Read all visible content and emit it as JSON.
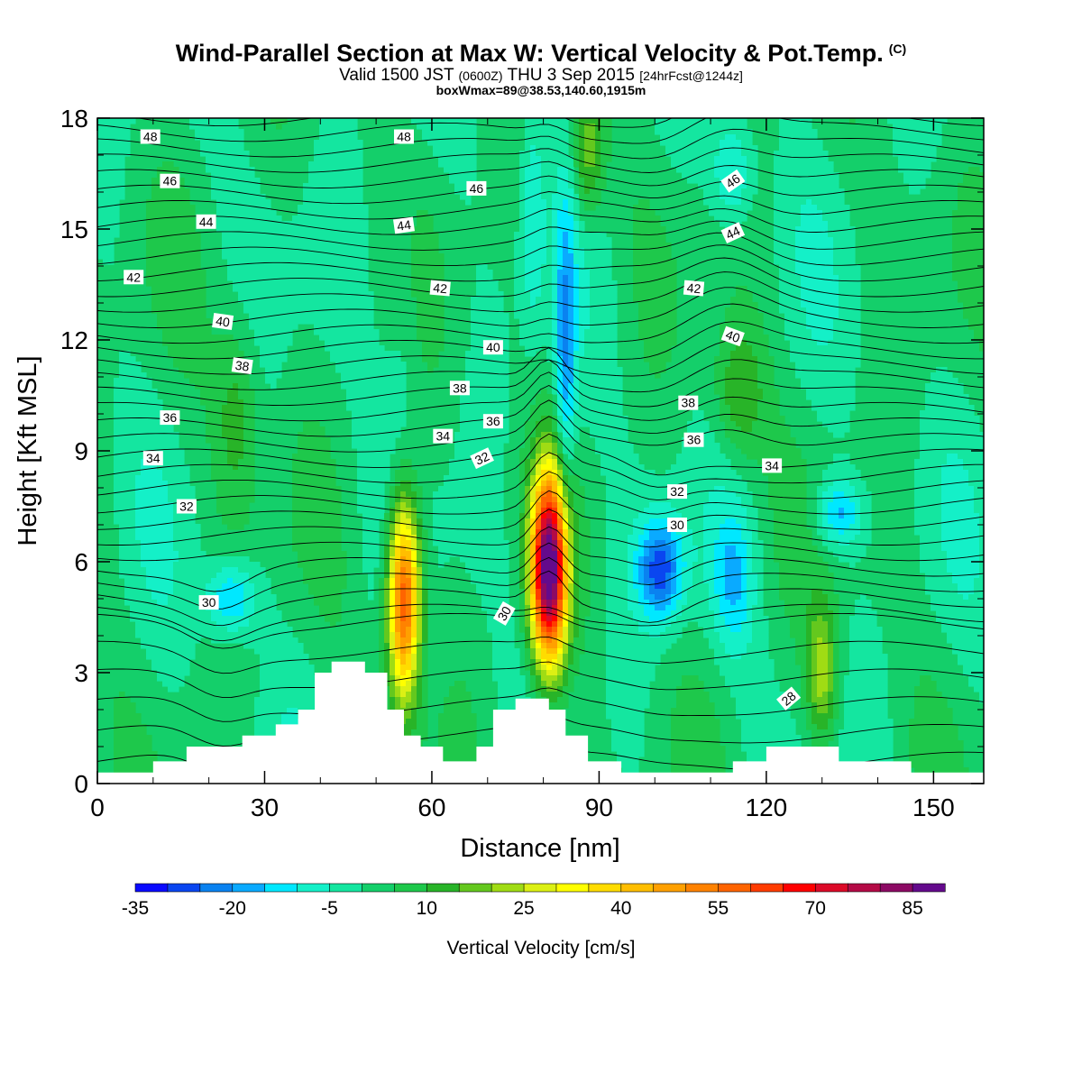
{
  "header": {
    "title": "Wind-Parallel Section at Max W: Vertical Velocity & Pot.Temp.",
    "copyright_mark": "(C)",
    "subtitle_a": "Valid 1500 JST",
    "subtitle_b": "(0600Z)",
    "subtitle_c": "THU 3 Sep 2015",
    "subtitle_d": "[24hrFcst@1244z]",
    "subtitle2": "boxWmax=89@38.53,140.60,1915m"
  },
  "colors": {
    "background_field": "#14cf6a",
    "terrain": "#ffffff",
    "contour": "#000000"
  },
  "chart_data": {
    "type": "heatmap",
    "xlabel": "Distance [nm]",
    "ylabel": "Height [Kft MSL]",
    "xlim": [
      0,
      159
    ],
    "ylim": [
      0,
      18
    ],
    "xticks": [
      0,
      30,
      60,
      90,
      120,
      150
    ],
    "yticks": [
      0,
      3,
      6,
      9,
      12,
      15,
      18
    ],
    "colorbar": {
      "label": "Vertical Velocity [cm/s]",
      "levels": [
        -35,
        -30,
        -25,
        -20,
        -15,
        -10,
        -5,
        0,
        5,
        10,
        15,
        20,
        25,
        30,
        35,
        40,
        45,
        50,
        55,
        60,
        65,
        70,
        75,
        80,
        85,
        90
      ],
      "tick_labels": [
        -35,
        -20,
        -5,
        10,
        25,
        40,
        55,
        70,
        85
      ],
      "colors": [
        "#0a0aff",
        "#0a46f0",
        "#0a82f0",
        "#0aaaff",
        "#00e8ff",
        "#14f0c8",
        "#14e6a0",
        "#14cf6a",
        "#1ec84b",
        "#28b428",
        "#64c81e",
        "#a0dc14",
        "#dcf014",
        "#ffff00",
        "#ffdc00",
        "#ffbe00",
        "#ffa000",
        "#ff8200",
        "#ff6400",
        "#ff3c00",
        "#ff0000",
        "#dc0a28",
        "#b40a46",
        "#8c0a64",
        "#640a8c"
      ]
    },
    "velocity_features": [
      {
        "x": 55,
        "y": 5.0,
        "rx": 3.2,
        "ry": 3.0,
        "peak": 62
      },
      {
        "x": 81,
        "y": 5.8,
        "rx": 3.5,
        "ry": 2.8,
        "peak": 89
      },
      {
        "x": 101,
        "y": 5.8,
        "rx": 4.5,
        "ry": 1.5,
        "peak": -28
      },
      {
        "x": 114,
        "y": 5.5,
        "rx": 4.0,
        "ry": 2.0,
        "peak": -14
      },
      {
        "x": 133,
        "y": 7.3,
        "rx": 4.5,
        "ry": 1.0,
        "peak": -18
      },
      {
        "x": 24,
        "y": 5.0,
        "rx": 5.0,
        "ry": 1.1,
        "peak": -18
      },
      {
        "x": 84,
        "y": 11.5,
        "rx": 2.0,
        "ry": 4.5,
        "peak": -20
      },
      {
        "x": 78,
        "y": 15.5,
        "rx": 2.2,
        "ry": 3.5,
        "peak": -10
      },
      {
        "x": 114,
        "y": 16.5,
        "rx": 4.0,
        "ry": 1.6,
        "peak": -14
      },
      {
        "x": 55,
        "y": 12.5,
        "rx": 3.5,
        "ry": 5.0,
        "peak": -5
      },
      {
        "x": 130,
        "y": 3.0,
        "rx": 3.0,
        "ry": 2.0,
        "peak": 22
      },
      {
        "x": 115,
        "y": 10.5,
        "rx": 5.0,
        "ry": 2.0,
        "peak": 14
      },
      {
        "x": 25,
        "y": 10.0,
        "rx": 4.5,
        "ry": 3.0,
        "peak": 12
      },
      {
        "x": 88,
        "y": 17.0,
        "rx": 3.0,
        "ry": 2.0,
        "peak": 18
      }
    ],
    "terrain_kft": [
      [
        0,
        0.3
      ],
      [
        10,
        0.3
      ],
      [
        10,
        0.6
      ],
      [
        16,
        0.6
      ],
      [
        16,
        1.0
      ],
      [
        26,
        1.0
      ],
      [
        26,
        1.3
      ],
      [
        32,
        1.3
      ],
      [
        32,
        1.6
      ],
      [
        36,
        1.6
      ],
      [
        36,
        2.0
      ],
      [
        39,
        2.0
      ],
      [
        39,
        3.0
      ],
      [
        42,
        3.0
      ],
      [
        42,
        3.3
      ],
      [
        48,
        3.3
      ],
      [
        48,
        3.0
      ],
      [
        52,
        3.0
      ],
      [
        52,
        2.0
      ],
      [
        55,
        2.0
      ],
      [
        55,
        1.3
      ],
      [
        58,
        1.3
      ],
      [
        58,
        1.0
      ],
      [
        62,
        1.0
      ],
      [
        62,
        0.6
      ],
      [
        68,
        0.6
      ],
      [
        68,
        1.0
      ],
      [
        71,
        1.0
      ],
      [
        71,
        2.0
      ],
      [
        75,
        2.0
      ],
      [
        75,
        2.3
      ],
      [
        81,
        2.3
      ],
      [
        81,
        2.0
      ],
      [
        84,
        2.0
      ],
      [
        84,
        1.3
      ],
      [
        88,
        1.3
      ],
      [
        88,
        0.6
      ],
      [
        94,
        0.6
      ],
      [
        94,
        0.3
      ],
      [
        114,
        0.3
      ],
      [
        114,
        0.6
      ],
      [
        120,
        0.6
      ],
      [
        120,
        1.0
      ],
      [
        133,
        1.0
      ],
      [
        133,
        0.6
      ],
      [
        146,
        0.6
      ],
      [
        146,
        0.3
      ],
      [
        159,
        0.3
      ]
    ],
    "theta_contour_labels": [
      {
        "text": "48",
        "x": 9.5,
        "y": 17.5,
        "angle": 0
      },
      {
        "text": "48",
        "x": 55,
        "y": 17.5,
        "angle": 0
      },
      {
        "text": "46",
        "x": 13,
        "y": 16.3,
        "angle": 0
      },
      {
        "text": "46",
        "x": 68,
        "y": 16.1,
        "angle": 0
      },
      {
        "text": "46",
        "x": 114,
        "y": 16.3,
        "angle": 35
      },
      {
        "text": "44",
        "x": 19.5,
        "y": 15.2,
        "angle": 0
      },
      {
        "text": "44",
        "x": 55,
        "y": 15.1,
        "angle": 8
      },
      {
        "text": "44",
        "x": 114,
        "y": 14.9,
        "angle": 25
      },
      {
        "text": "42",
        "x": 6.5,
        "y": 13.7,
        "angle": 0
      },
      {
        "text": "42",
        "x": 61.5,
        "y": 13.4,
        "angle": -5
      },
      {
        "text": "42",
        "x": 107,
        "y": 13.4,
        "angle": -5
      },
      {
        "text": "40",
        "x": 22.5,
        "y": 12.5,
        "angle": -8
      },
      {
        "text": "40",
        "x": 71,
        "y": 11.8,
        "angle": 0
      },
      {
        "text": "40",
        "x": 114,
        "y": 12.1,
        "angle": -20
      },
      {
        "text": "38",
        "x": 26,
        "y": 11.3,
        "angle": -8
      },
      {
        "text": "38",
        "x": 65,
        "y": 10.7,
        "angle": 0
      },
      {
        "text": "38",
        "x": 106,
        "y": 10.3,
        "angle": 0
      },
      {
        "text": "36",
        "x": 13,
        "y": 9.9,
        "angle": 0
      },
      {
        "text": "36",
        "x": 71,
        "y": 9.8,
        "angle": 0
      },
      {
        "text": "36",
        "x": 107,
        "y": 9.3,
        "angle": 0
      },
      {
        "text": "34",
        "x": 10,
        "y": 8.8,
        "angle": 0
      },
      {
        "text": "34",
        "x": 62,
        "y": 9.4,
        "angle": 0
      },
      {
        "text": "34",
        "x": 121,
        "y": 8.6,
        "angle": 0
      },
      {
        "text": "32",
        "x": 16,
        "y": 7.5,
        "angle": 0
      },
      {
        "text": "32",
        "x": 69,
        "y": 8.8,
        "angle": 25
      },
      {
        "text": "32",
        "x": 104,
        "y": 7.9,
        "angle": 0
      },
      {
        "text": "30",
        "x": 20,
        "y": 4.9,
        "angle": 0
      },
      {
        "text": "30",
        "x": 73,
        "y": 4.6,
        "angle": 60
      },
      {
        "text": "30",
        "x": 104,
        "y": 7.0,
        "angle": 0
      },
      {
        "text": "28",
        "x": 124,
        "y": 2.3,
        "angle": 40
      }
    ]
  }
}
